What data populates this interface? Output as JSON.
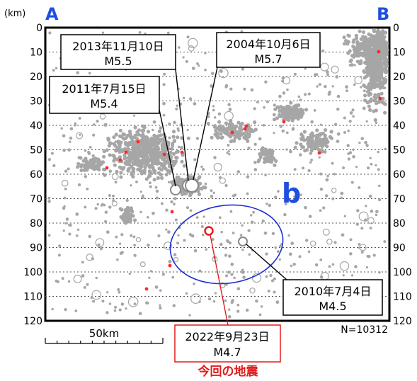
{
  "unit_label": "(km)",
  "section_start": "A",
  "section_end": "B",
  "region_label": "b",
  "depth_ticks": [
    "0",
    "10",
    "20",
    "30",
    "40",
    "50",
    "60",
    "70",
    "80",
    "90",
    "100",
    "110",
    "120"
  ],
  "scale_bar_label": "50km",
  "event_count": "N=10312",
  "current_event_caption": "今回の地震",
  "colors": {
    "background_quake": "#a6a6a6",
    "recent_quake": "#ff2a2a",
    "region_ellipse": "#1f2fd6",
    "label_blue": "#1f4fe0",
    "callout_red": "#e31b1b"
  },
  "events": [
    {
      "date": "2013年11月10日",
      "mag": "M5.5"
    },
    {
      "date": "2004年10月6日",
      "mag": "M5.7"
    },
    {
      "date": "2011年7月15日",
      "mag": "M5.4"
    },
    {
      "date": "2010年7月4日",
      "mag": "M4.5"
    },
    {
      "date": "2022年9月23日",
      "mag": "M4.7"
    }
  ]
}
